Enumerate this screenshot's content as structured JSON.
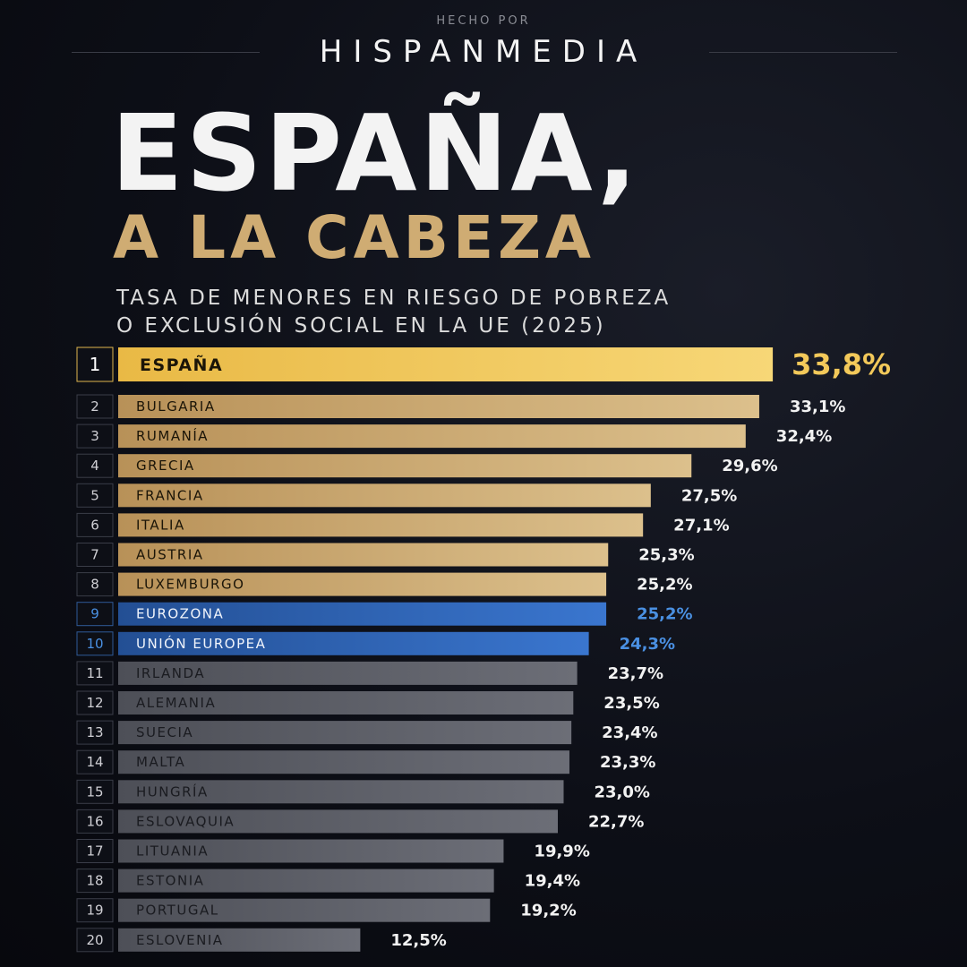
{
  "header": {
    "pretitle": "HECHO POR",
    "brand": "HISPANMEDIA",
    "title": "ESPAÑA,",
    "subtitle": "A LA CABEZA",
    "description_line1": "TASA DE MENORES EN RIESGO DE POBREZA",
    "description_line2": "O EXCLUSIÓN SOCIAL EN LA UE (2025)"
  },
  "colors": {
    "highlight": "#f3c95a",
    "gold": "#c9a66e",
    "blue": "#2c63b3",
    "blue_text": "#4a90e2",
    "gray": "#5e6068"
  },
  "chart_data": {
    "type": "bar",
    "orientation": "horizontal",
    "value_format": "percent-comma-decimal",
    "xlim": [
      0,
      40
    ],
    "categories": [
      "ESPAÑA",
      "BULGARIA",
      "RUMANÍA",
      "GRECIA",
      "FRANCIA",
      "ITALIA",
      "AUSTRIA",
      "LUXEMBURGO",
      "EUROZONA",
      "UNIÓN EUROPEA",
      "IRLANDA",
      "ALEMANIA",
      "SUECIA",
      "MALTA",
      "HUNGRÍA",
      "ESLOVAQUIA",
      "LITUANIA",
      "ESTONIA",
      "PORTUGAL",
      "ESLOVENIA"
    ],
    "ranks": [
      "1",
      "2",
      "3",
      "4",
      "5",
      "6",
      "7",
      "8",
      "9",
      "10",
      "11",
      "12",
      "13",
      "14",
      "15",
      "16",
      "17",
      "18",
      "19",
      "20"
    ],
    "values": [
      33.8,
      33.1,
      32.4,
      29.6,
      27.5,
      27.1,
      25.3,
      25.2,
      25.2,
      24.3,
      23.7,
      23.5,
      23.4,
      23.3,
      23.0,
      22.7,
      19.9,
      19.4,
      19.2,
      12.5
    ],
    "value_labels": [
      "33,8%",
      "33,1%",
      "32,4%",
      "29,6%",
      "27,5%",
      "27,1%",
      "25,3%",
      "25,2%",
      "25,2%",
      "24,3%",
      "23,7%",
      "23,5%",
      "23,4%",
      "23,3%",
      "23,0%",
      "22,7%",
      "19,9%",
      "19,4%",
      "19,2%",
      "12,5%"
    ],
    "groups": [
      "highlight",
      "gold",
      "gold",
      "gold",
      "gold",
      "gold",
      "gold",
      "gold",
      "blue",
      "blue",
      "gray",
      "gray",
      "gray",
      "gray",
      "gray",
      "gray",
      "gray",
      "gray",
      "gray",
      "gray"
    ]
  }
}
